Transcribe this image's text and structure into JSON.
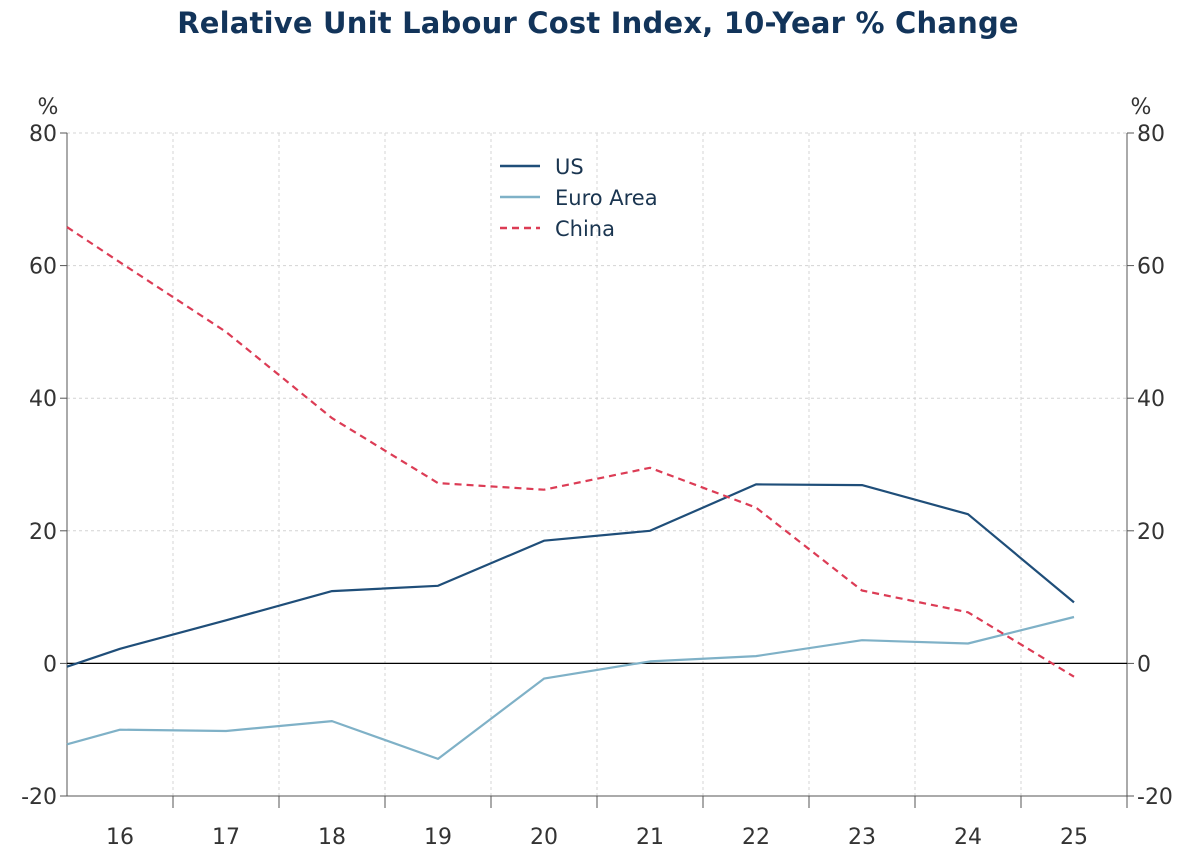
{
  "chart_data": {
    "type": "line",
    "title": "Relative Unit Labour Cost Index, 10-Year % Change",
    "ylabel_left": "%",
    "ylabel_right": "%",
    "ylim": [
      -20,
      80
    ],
    "yticks": [
      -20,
      0,
      20,
      40,
      60,
      80
    ],
    "xlim": [
      2015.5,
      2025.5
    ],
    "xtick_labels": [
      {
        "x": 2016,
        "label": "16"
      },
      {
        "x": 2017,
        "label": "17"
      },
      {
        "x": 2018,
        "label": "18"
      },
      {
        "x": 2019,
        "label": "19"
      },
      {
        "x": 2020,
        "label": "20"
      },
      {
        "x": 2021,
        "label": "21"
      },
      {
        "x": 2022,
        "label": "22"
      },
      {
        "x": 2023,
        "label": "23"
      },
      {
        "x": 2024,
        "label": "24"
      },
      {
        "x": 2025,
        "label": "25"
      }
    ],
    "grid": true,
    "legend_position": "top-center",
    "x": [
      2015.5,
      2016,
      2017,
      2018,
      2019,
      2020,
      2021,
      2022,
      2023,
      2024,
      2025
    ],
    "series": [
      {
        "name": "US",
        "color": "#1f4e79",
        "style": "solid",
        "values": [
          -0.5,
          2.2,
          6.5,
          10.9,
          11.7,
          18.5,
          20.0,
          27.0,
          26.9,
          22.5,
          9.2
        ]
      },
      {
        "name": "Euro Area",
        "color": "#7fb1c7",
        "style": "solid",
        "values": [
          -12.2,
          -10.0,
          -10.2,
          -8.7,
          -14.4,
          -2.3,
          0.3,
          1.1,
          3.5,
          3.0,
          7.0
        ]
      },
      {
        "name": "China",
        "color": "#dc3c55",
        "style": "dashed",
        "values": [
          65.8,
          60.5,
          50.0,
          37.0,
          27.2,
          26.2,
          29.5,
          23.5,
          11.0,
          7.7,
          -2.0
        ]
      }
    ]
  }
}
